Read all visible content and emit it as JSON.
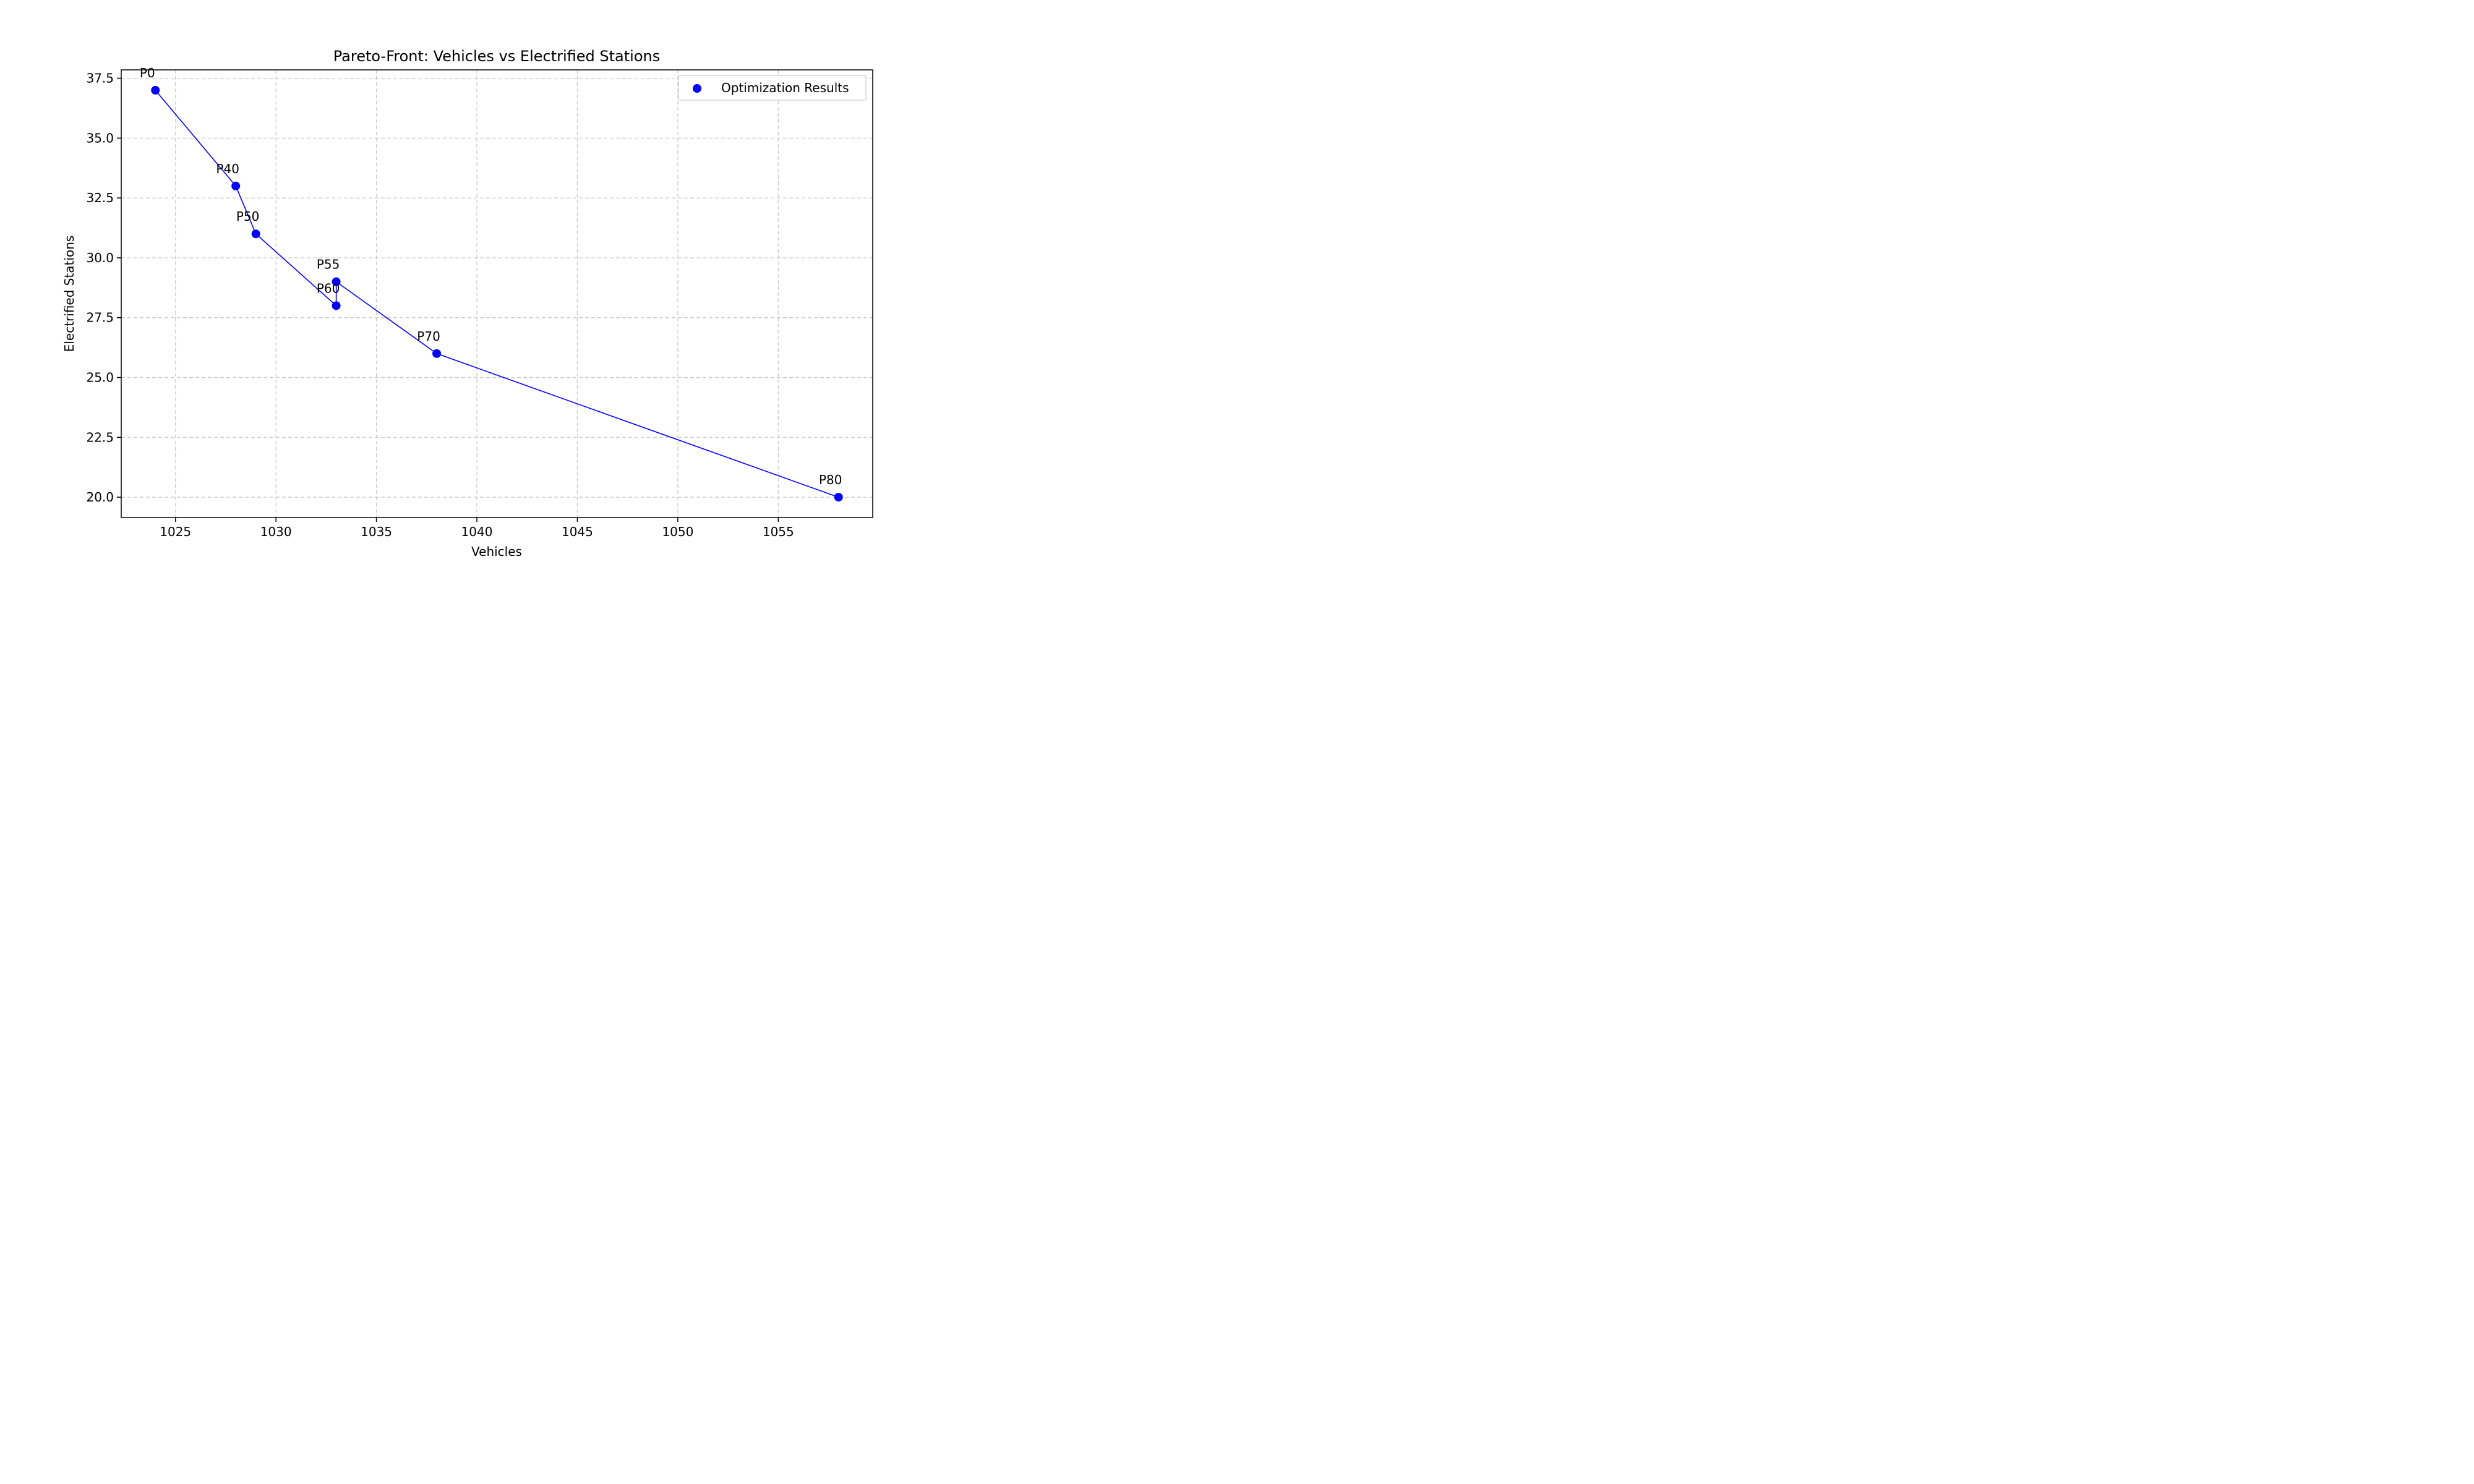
{
  "chart_data": {
    "type": "scatter",
    "title": "Pareto-Front: Vehicles vs Electrified Stations",
    "xlabel": "Vehicles",
    "ylabel": "Electrified Stations",
    "xlim": [
      1022.3,
      1059.7
    ],
    "ylim": [
      19.15,
      37.85
    ],
    "xticks": [
      1025,
      1030,
      1035,
      1040,
      1045,
      1050,
      1055
    ],
    "yticks": [
      20.0,
      22.5,
      25.0,
      27.5,
      30.0,
      32.5,
      35.0,
      37.5
    ],
    "xtick_labels": [
      "1025",
      "1030",
      "1035",
      "1040",
      "1045",
      "1050",
      "1055"
    ],
    "ytick_labels": [
      "20.0",
      "22.5",
      "25.0",
      "27.5",
      "30.0",
      "32.5",
      "35.0",
      "37.5"
    ],
    "grid": true,
    "legend_position": "top-right",
    "series": [
      {
        "name": "Optimization Results",
        "color": "#0000ff",
        "connected": true,
        "points": [
          {
            "label": "P0",
            "x": 1024,
            "y": 37
          },
          {
            "label": "P40",
            "x": 1028,
            "y": 33
          },
          {
            "label": "P50",
            "x": 1029,
            "y": 31
          },
          {
            "label": "P60",
            "x": 1033,
            "y": 28
          },
          {
            "label": "P55",
            "x": 1033,
            "y": 29
          },
          {
            "label": "P70",
            "x": 1038,
            "y": 26
          },
          {
            "label": "P80",
            "x": 1058,
            "y": 20
          }
        ]
      }
    ]
  }
}
